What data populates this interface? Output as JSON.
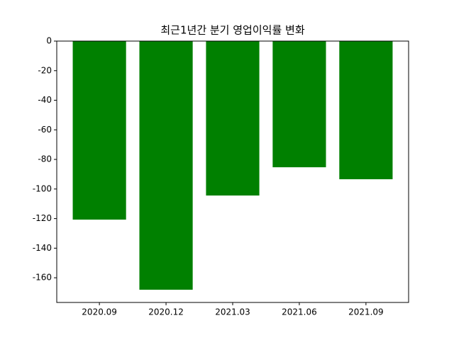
{
  "chart_data": {
    "type": "bar",
    "title": "최근1년간 분기 영업이익률 변화",
    "categories": [
      "2020.09",
      "2020.12",
      "2021.03",
      "2021.06",
      "2021.09"
    ],
    "values": [
      -120.7,
      -168.1,
      -104.4,
      -85.3,
      -93.4
    ],
    "color": "#008000",
    "ylim": [
      -176.7,
      0
    ],
    "yticks": [
      0,
      -20,
      -40,
      -60,
      -80,
      -100,
      -120,
      -140,
      -160
    ]
  }
}
